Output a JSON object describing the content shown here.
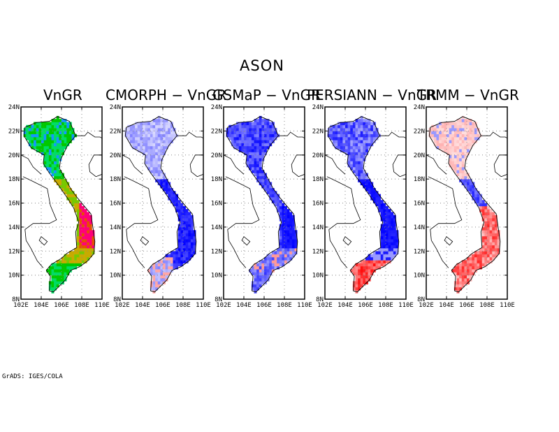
{
  "title": "ASON",
  "credit": "GrADS: IGES/COLA",
  "panels": [
    {
      "title": "VnGR",
      "scheme": "abs"
    },
    {
      "title": "CMORPH − VnGR",
      "scheme": "cmorph"
    },
    {
      "title": "GSMaP − VnGR",
      "scheme": "gsmap"
    },
    {
      "title": "PERSIANN − VnGR",
      "scheme": "persiann"
    },
    {
      "title": "TRMM − VnGR",
      "scheme": "trmm"
    }
  ],
  "axes": {
    "lat_labels": [
      "8N",
      "10N",
      "12N",
      "14N",
      "16N",
      "18N",
      "20N",
      "22N",
      "24N"
    ],
    "lon_labels": [
      "102E",
      "104E",
      "106E",
      "108E",
      "110E"
    ],
    "lat_range": [
      8,
      24
    ],
    "lon_range": [
      102,
      110
    ]
  },
  "colors": {
    "abs": [
      "#00c800",
      "#00dc64",
      "#1496ff",
      "#78c800",
      "#c8aa00",
      "#e65000",
      "#ff0078"
    ],
    "blue": "#0000ff",
    "red": "#ff0000"
  }
}
